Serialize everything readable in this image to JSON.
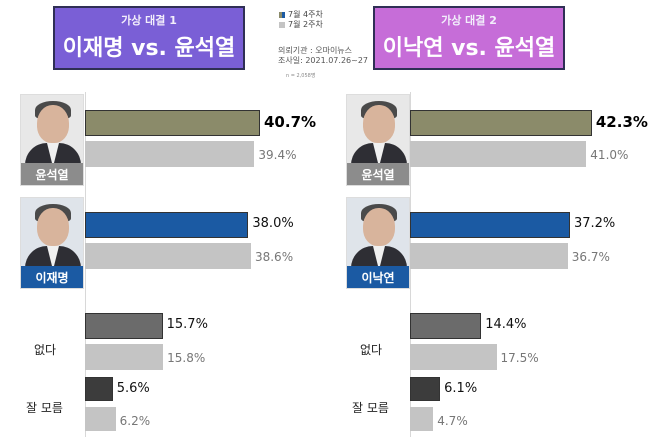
{
  "panels": [
    {
      "subtitle": "가상 대결 1",
      "title": "이재명 vs. 윤석열",
      "candidate_a": "윤석열",
      "candidate_b": "이재명",
      "rows": [
        {
          "label": "윤석열",
          "week4": 40.7,
          "week2": 39.4,
          "week4_text": "40.7%",
          "week2_text": "39.4%"
        },
        {
          "label": "이재명",
          "week4": 38.0,
          "week2": 38.6,
          "week4_text": "38.0%",
          "week2_text": "38.6%"
        },
        {
          "label": "없다",
          "week4": 15.7,
          "week2": 15.8,
          "week4_text": "15.7%",
          "week2_text": "15.8%"
        },
        {
          "label": "잘 모름",
          "week4": 5.6,
          "week2": 6.2,
          "week4_text": "5.6%",
          "week2_text": "6.2%"
        }
      ]
    },
    {
      "subtitle": "가상 대결 2",
      "title": "이낙연 vs. 윤석열",
      "candidate_a": "윤석열",
      "candidate_b": "이낙연",
      "rows": [
        {
          "label": "윤석열",
          "week4": 42.3,
          "week2": 41.0,
          "week4_text": "42.3%",
          "week2_text": "41.0%"
        },
        {
          "label": "이낙연",
          "week4": 37.2,
          "week2": 36.7,
          "week4_text": "37.2%",
          "week2_text": "36.7%"
        },
        {
          "label": "없다",
          "week4": 14.4,
          "week2": 17.5,
          "week4_text": "14.4%",
          "week2_text": "17.5%"
        },
        {
          "label": "잘 모름",
          "week4": 6.1,
          "week2": 4.7,
          "week4_text": "6.1%",
          "week2_text": "4.7%"
        }
      ]
    }
  ],
  "legend": {
    "week4": "7월 4주차",
    "week2": "7월 2주차"
  },
  "source": {
    "line1": "의뢰기관 : 오마이뉴스",
    "line2": "조사일: 2021.07.26~27",
    "n": "n = 2,058명"
  },
  "colors": {
    "candidate_a_week4": "#8b8b6a",
    "candidate_b_week4": "#1b5aa3",
    "none_week4": "#6b6b6b",
    "dontknow_week4": "#3c3c3c",
    "week2": "#c4c4c4",
    "title1_bg": "#7a5fd6",
    "title2_bg": "#c66dd8"
  },
  "chart_data": [
    {
      "type": "bar",
      "title": "이재명 vs. 윤석열",
      "subtitle": "가상 대결 1",
      "categories": [
        "윤석열",
        "이재명",
        "없다",
        "잘 모름"
      ],
      "series": [
        {
          "name": "7월 4주차",
          "values": [
            40.7,
            38.0,
            15.7,
            5.6
          ]
        },
        {
          "name": "7월 2주차",
          "values": [
            39.4,
            38.6,
            15.8,
            6.2
          ]
        }
      ],
      "xlim": [
        0,
        50
      ],
      "orientation": "horizontal",
      "legend": "top-center"
    },
    {
      "type": "bar",
      "title": "이낙연 vs. 윤석열",
      "subtitle": "가상 대결 2",
      "categories": [
        "윤석열",
        "이낙연",
        "없다",
        "잘 모름"
      ],
      "series": [
        {
          "name": "7월 4주차",
          "values": [
            42.3,
            37.2,
            14.4,
            6.1
          ]
        },
        {
          "name": "7월 2주차",
          "values": [
            41.0,
            36.7,
            17.5,
            4.7
          ]
        }
      ],
      "xlim": [
        0,
        50
      ],
      "orientation": "horizontal",
      "legend": "top-center"
    }
  ]
}
